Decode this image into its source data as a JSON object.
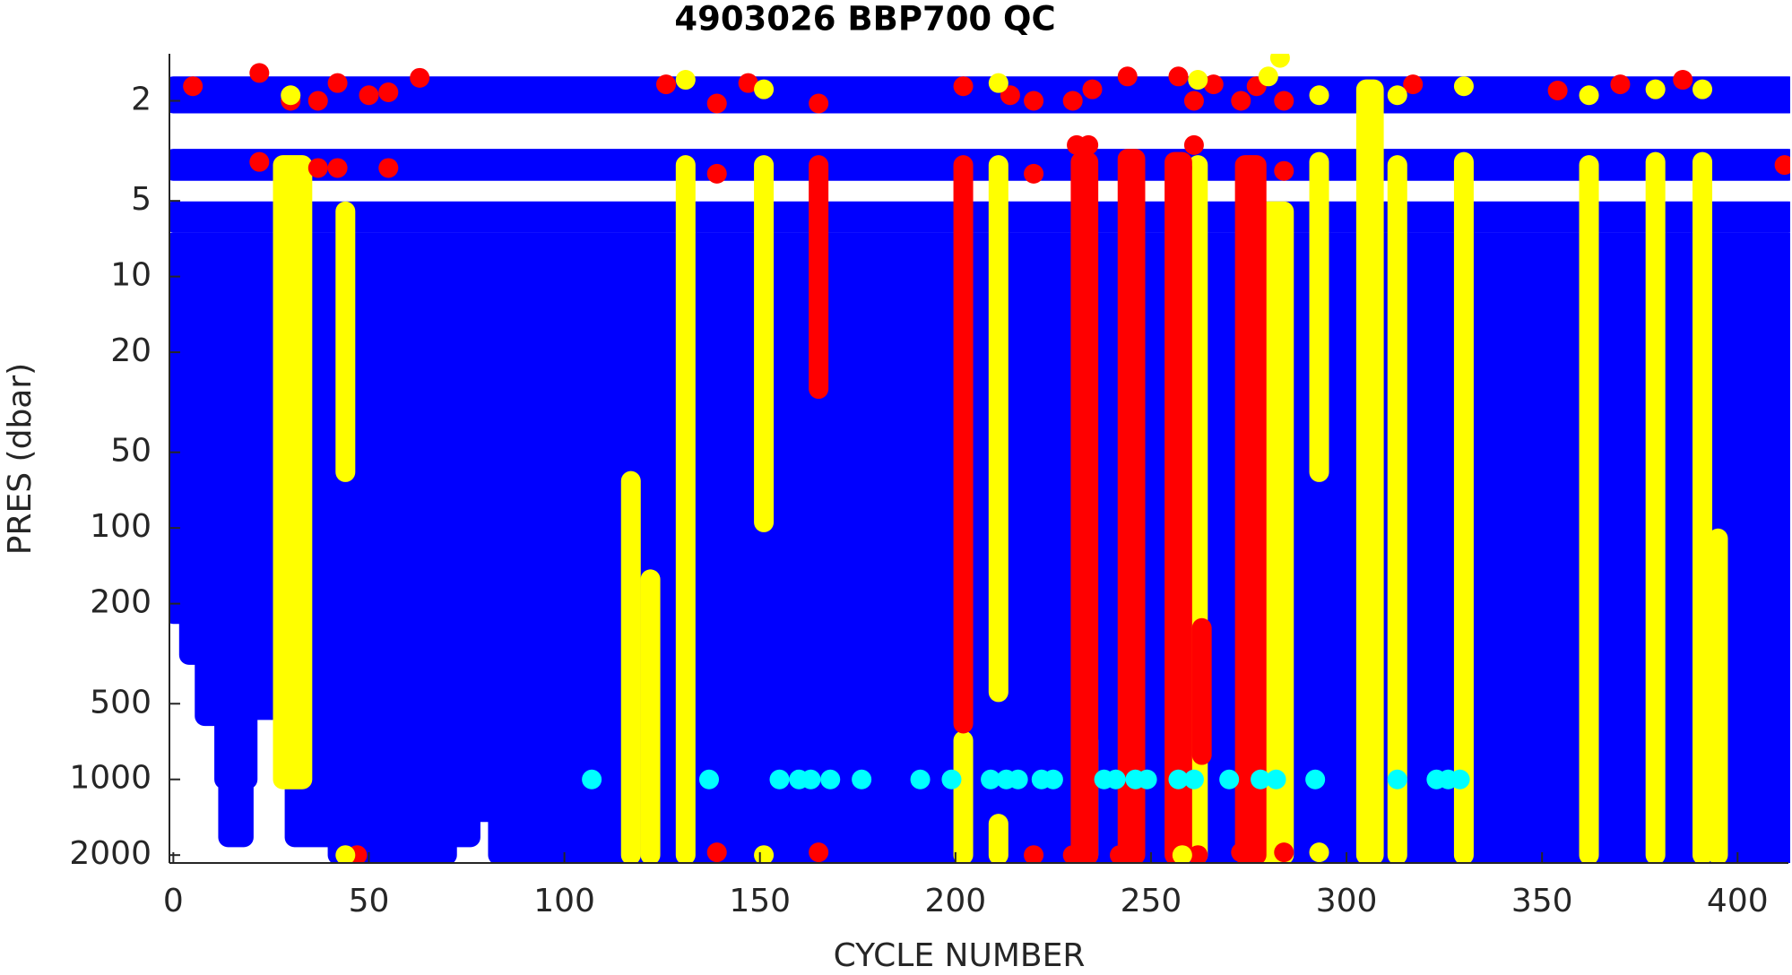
{
  "chart_data": {
    "type": "scatter",
    "title": "4903026 BBP700 QC",
    "xlabel": "CYCLE NUMBER",
    "ylabel": "PRES (dbar)",
    "xlim": [
      -1,
      413
    ],
    "xticks": [
      0,
      50,
      100,
      150,
      200,
      250,
      300,
      350,
      400
    ],
    "ylim": [
      1.3,
      2150
    ],
    "yticks": [
      2,
      5,
      10,
      20,
      50,
      100,
      200,
      500,
      1000,
      2000
    ],
    "ylog": true,
    "yreverse": true,
    "strips": [
      {
        "color": "#0000ff",
        "items": [
          [
            0,
            413,
            1.75,
            2.05
          ],
          [
            0,
            413,
            3.4,
            3.8
          ],
          [
            0,
            413,
            5.5,
            6.1
          ],
          [
            0,
            413,
            7.3,
            8.1
          ],
          [
            0,
            413,
            9.3,
            10.6
          ],
          [
            0,
            4,
            11,
            220
          ],
          [
            4,
            8,
            11,
            320
          ],
          [
            8,
            13,
            11,
            560
          ],
          [
            13,
            19,
            11,
            1000
          ],
          [
            14,
            18,
            11,
            1700
          ],
          [
            19,
            29,
            11,
            530
          ],
          [
            31,
            42,
            11,
            1700
          ],
          [
            42,
            70,
            11,
            2000
          ],
          [
            70,
            76,
            11,
            1700
          ],
          [
            76,
            83,
            11,
            1350
          ],
          [
            83,
            104,
            11,
            2000
          ],
          [
            104,
            106,
            11,
            1300
          ],
          [
            106,
            413,
            11,
            2000
          ]
        ]
      },
      {
        "color": "#ffff00",
        "items": [
          [
            28,
            33,
            3.6,
            1000
          ],
          [
            44,
            44,
            5.5,
            60
          ],
          [
            117,
            117,
            65,
            2000
          ],
          [
            122,
            122,
            160,
            2000
          ],
          [
            131,
            131,
            3.6,
            2000
          ],
          [
            151,
            151,
            3.6,
            95
          ],
          [
            202,
            202,
            700,
            2000
          ],
          [
            211,
            211,
            3.6,
            450
          ],
          [
            211,
            211,
            1500,
            2000
          ],
          [
            234,
            234,
            700,
            2000
          ],
          [
            262,
            262,
            3.6,
            2000
          ],
          [
            279,
            284,
            5.5,
            2000
          ],
          [
            293,
            293,
            3.5,
            60
          ],
          [
            305,
            307,
            1.8,
            2000
          ],
          [
            313,
            313,
            3.6,
            2000
          ],
          [
            330,
            330,
            3.5,
            2000
          ],
          [
            362,
            362,
            3.6,
            2000
          ],
          [
            379,
            379,
            3.5,
            2000
          ],
          [
            391,
            391,
            3.5,
            2000
          ],
          [
            395,
            395,
            110,
            2000
          ]
        ]
      },
      {
        "color": "#ff0000",
        "items": [
          [
            165,
            165,
            3.6,
            28
          ],
          [
            202,
            202,
            3.6,
            600
          ],
          [
            232,
            234,
            3.5,
            2000
          ],
          [
            244,
            246,
            3.4,
            2000
          ],
          [
            256,
            258,
            3.5,
            2000
          ],
          [
            263,
            263,
            250,
            800
          ],
          [
            274,
            277,
            3.6,
            2000
          ]
        ]
      }
    ],
    "series": [
      {
        "color": "#ff0000",
        "x": [
          5,
          22,
          30,
          37,
          42,
          50,
          55,
          63,
          126,
          139,
          147,
          165,
          202,
          214,
          220,
          230,
          235,
          244,
          257,
          261,
          266,
          273,
          277,
          284,
          317,
          354,
          370,
          386,
          412,
          22,
          37,
          42,
          55,
          139,
          202,
          220,
          231,
          234,
          246,
          258,
          261,
          275,
          284,
          47,
          139,
          165,
          220,
          230,
          234,
          242,
          262,
          273,
          284
        ],
        "values": [
          1.75,
          1.55,
          2,
          2,
          1.7,
          1.9,
          1.85,
          1.62,
          1.72,
          2.05,
          1.7,
          2.05,
          1.75,
          1.9,
          2,
          2,
          1.8,
          1.6,
          1.6,
          2,
          1.72,
          2,
          1.75,
          2,
          1.72,
          1.82,
          1.72,
          1.65,
          3.6,
          3.5,
          3.7,
          3.7,
          3.7,
          3.9,
          3.7,
          3.9,
          3.0,
          3.0,
          3.6,
          3.7,
          3.0,
          3.9,
          3.8,
          2000,
          1950,
          1950,
          2000,
          2000,
          2000,
          2000,
          2000,
          1950,
          1950
        ]
      },
      {
        "color": "#ffff00",
        "x": [
          30,
          131,
          151,
          211,
          262,
          280,
          283,
          293,
          306,
          313,
          330,
          362,
          379,
          391,
          44,
          151,
          258,
          293
        ],
        "values": [
          1.9,
          1.65,
          1.8,
          1.7,
          1.65,
          1.6,
          1.35,
          1.9,
          1.9,
          1.9,
          1.75,
          1.9,
          1.8,
          1.8,
          2000,
          2000,
          2000,
          1950
        ]
      },
      {
        "color": "#00ffff",
        "x": [
          107,
          137,
          155,
          160,
          163,
          168,
          176,
          191,
          199,
          209,
          213,
          216,
          222,
          225,
          238,
          241,
          246,
          249,
          257,
          261,
          270,
          278,
          282,
          292,
          313,
          323,
          326,
          329
        ],
        "values": [
          1000,
          1000,
          1000,
          1000,
          1000,
          1000,
          1000,
          1000,
          1000,
          1000,
          1000,
          1000,
          1000,
          1000,
          1000,
          1000,
          1000,
          1000,
          1000,
          1000,
          1000,
          1000,
          1000,
          1000,
          1000,
          1000,
          1000,
          1000
        ]
      }
    ]
  }
}
